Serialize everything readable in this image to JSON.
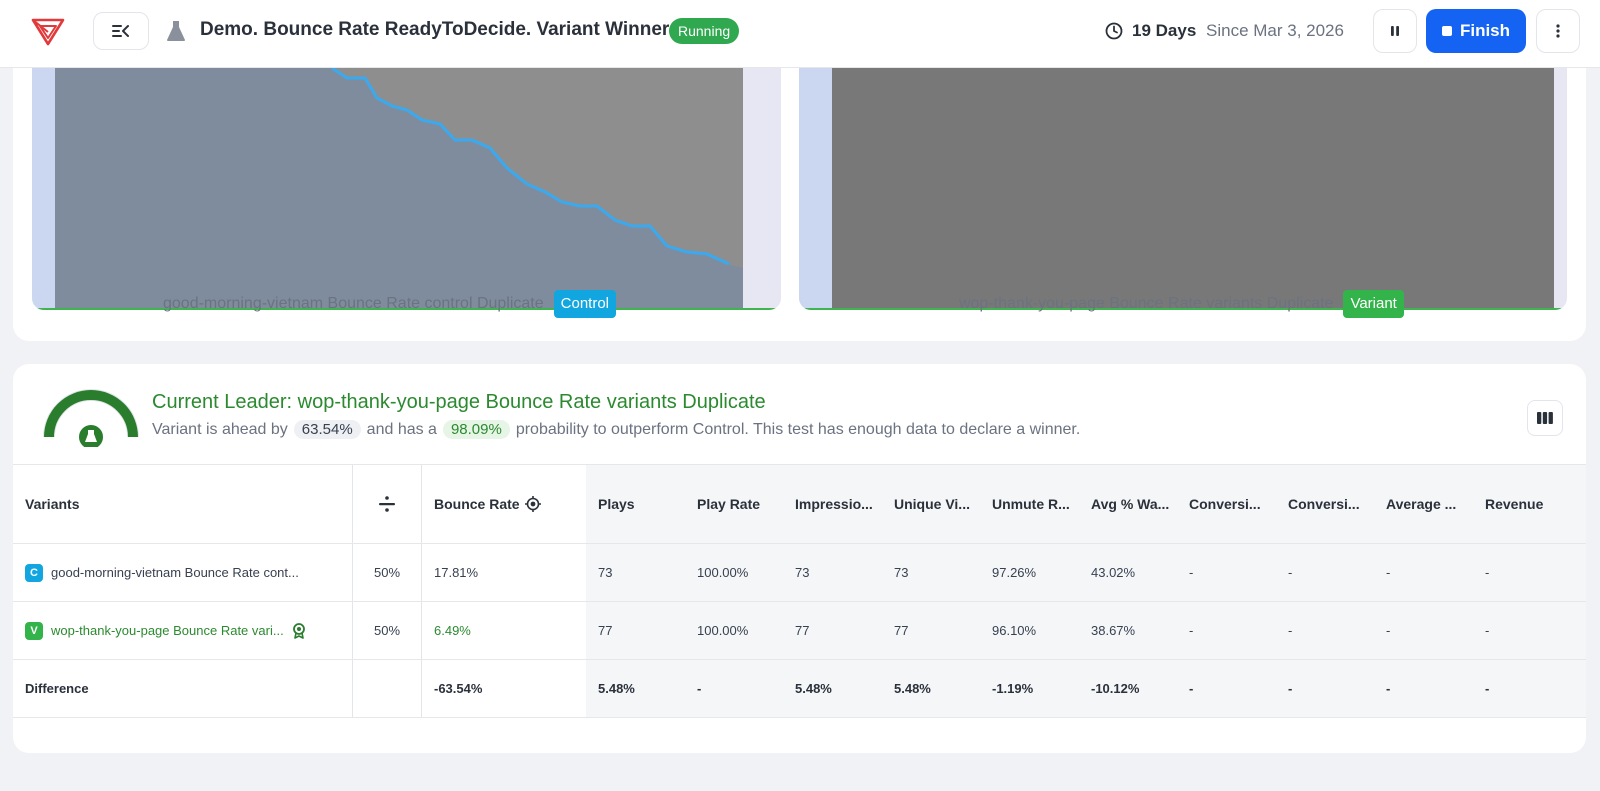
{
  "header": {
    "title": "Demo. Bounce Rate ReadyToDecide. Variant Winner",
    "status": "Running",
    "duration": "19 Days",
    "since": "Since Mar 3, 2026",
    "finish_label": "Finish"
  },
  "charts": [
    {
      "label": "good-morning-vietnam Bounce Rate control Duplicate",
      "tag": "Control"
    },
    {
      "label": "wop-thank-you-page Bounce Rate variants Duplicate",
      "tag": "Variant"
    }
  ],
  "leader": {
    "title": "Current Leader: wop-thank-you-page Bounce Rate variants Duplicate",
    "text_1": "Variant is ahead by",
    "ahead_by": "63.54%",
    "text_2": "and has a",
    "probability": "98.09%",
    "text_3": "probability to outperform Control. This test has enough data to declare a winner."
  },
  "table": {
    "columns": [
      "Variants",
      "",
      "Bounce Rate",
      "Plays",
      "Play Rate",
      "Impressio...",
      "Unique Vi...",
      "Unmute R...",
      "Avg % Wa...",
      "Conversi...",
      "Conversi...",
      "Average ...",
      "Revenue"
    ],
    "rows": [
      {
        "badge": "C",
        "name": "good-morning-vietnam Bounce Rate cont...",
        "split": "50%",
        "bounce": "17.81%",
        "plays": "73",
        "play_rate": "100.00%",
        "impressions": "73",
        "unique": "73",
        "unmute": "97.26%",
        "avg_watch": "43.02%",
        "conv1": "-",
        "conv2": "-",
        "average": "-",
        "revenue": "-"
      },
      {
        "badge": "V",
        "name": "wop-thank-you-page Bounce Rate vari...",
        "split": "50%",
        "bounce": "6.49%",
        "plays": "77",
        "play_rate": "100.00%",
        "impressions": "77",
        "unique": "77",
        "unmute": "96.10%",
        "avg_watch": "38.67%",
        "conv1": "-",
        "conv2": "-",
        "average": "-",
        "revenue": "-"
      }
    ],
    "difference": {
      "name": "Difference",
      "split": "",
      "bounce": "-63.54%",
      "plays": "5.48%",
      "play_rate": "-",
      "impressions": "5.48%",
      "unique": "5.48%",
      "unmute": "-1.19%",
      "avg_watch": "-10.12%",
      "conv1": "-",
      "conv2": "-",
      "average": "-",
      "revenue": "-"
    }
  },
  "colors": {
    "primary": "#1463f3",
    "running": "#2fa84f",
    "control": "#12a6e0",
    "variant": "#33b44a",
    "leader_green": "#2b8a2f"
  }
}
